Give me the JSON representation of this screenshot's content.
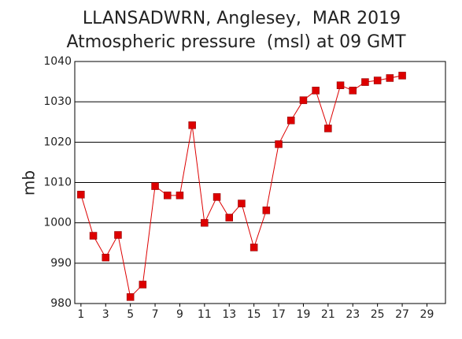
{
  "chart_data": {
    "type": "line",
    "title": "LLANSADWRN, Anglesey,  MAR 2019",
    "subtitle": "Atmospheric pressure  (msl) at 09 GMT",
    "y_label": "mb",
    "x": [
      1,
      2,
      3,
      4,
      5,
      6,
      7,
      8,
      9,
      10,
      11,
      12,
      13,
      14,
      15,
      16,
      17,
      18,
      19,
      20,
      21,
      22,
      23,
      24,
      25,
      26,
      27
    ],
    "series": [
      {
        "name": "Pressure",
        "color": "#dd0000",
        "values": [
          1007.0,
          996.8,
          991.4,
          997.0,
          981.6,
          984.7,
          1009.1,
          1006.8,
          1006.8,
          1024.2,
          1000.0,
          1006.4,
          1001.3,
          1004.8,
          993.9,
          1003.1,
          1019.5,
          1025.4,
          1030.4,
          1032.8,
          1023.4,
          1034.1,
          1032.8,
          1034.9,
          1035.3,
          1035.9,
          1036.5
        ]
      }
    ],
    "xlim": [
      0.5,
      30.5
    ],
    "xticks": [
      1,
      3,
      5,
      7,
      9,
      11,
      13,
      15,
      17,
      19,
      21,
      23,
      25,
      27,
      29
    ],
    "ylim": [
      980,
      1040
    ],
    "yticks": [
      980,
      990,
      1000,
      1010,
      1020,
      1030,
      1040
    ],
    "grid": true
  }
}
